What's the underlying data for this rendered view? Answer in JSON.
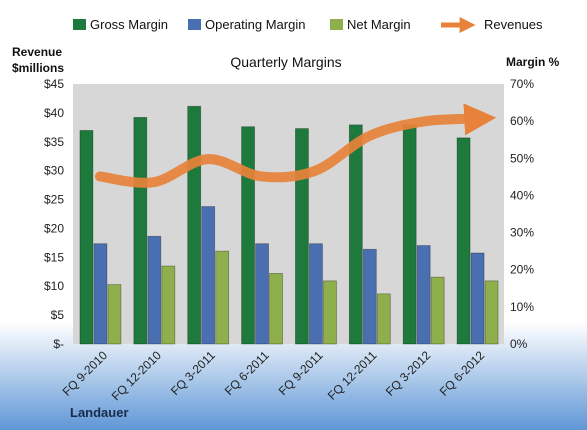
{
  "colors": {
    "gross": "#1e7a3c",
    "operating": "#4a6fb0",
    "net": "#8fae4c",
    "revenues": "#e8823a",
    "plot_bg": "#d7d7d7",
    "bg_top": "#ffffff",
    "bg_bottom": "#5f97d6"
  },
  "company": "Landauer",
  "chart_data": {
    "type": "bar",
    "title": "Quarterly Margins",
    "ylabel_left": [
      "Revenue",
      "$millions"
    ],
    "ylabel_right": "Margin %",
    "legend": [
      "Gross Margin",
      "Operating Margin",
      "Net Margin",
      "Revenues"
    ],
    "legend_position": "top",
    "grid": false,
    "categories": [
      "FQ 9-2010",
      "FQ 12-2010",
      "FQ 3-2011",
      "FQ 6-2011",
      "FQ 9-2011",
      "FQ 12-2011",
      "FQ 3-2012",
      "FQ 6-2012"
    ],
    "left_axis": {
      "ylim": [
        0,
        45
      ],
      "ticks": [
        "$-",
        "$5",
        "$10",
        "$15",
        "$20",
        "$25",
        "$30",
        "$35",
        "$40",
        "$45"
      ]
    },
    "right_axis": {
      "ylim": [
        0,
        70
      ],
      "ticks": [
        "0%",
        "10%",
        "20%",
        "30%",
        "40%",
        "50%",
        "60%",
        "70%"
      ]
    },
    "series": [
      {
        "name": "Gross Margin",
        "axis": "right",
        "values": [
          57.5,
          61.0,
          64.0,
          58.5,
          58.0,
          59.0,
          59.0,
          55.5
        ]
      },
      {
        "name": "Operating Margin",
        "axis": "right",
        "values": [
          27.0,
          29.0,
          37.0,
          27.0,
          27.0,
          25.5,
          26.5,
          24.5
        ]
      },
      {
        "name": "Net Margin",
        "axis": "right",
        "values": [
          16.0,
          21.0,
          25.0,
          19.0,
          17.0,
          13.5,
          18.0,
          17.0
        ]
      },
      {
        "name": "Revenues",
        "axis": "left",
        "type": "line",
        "values": [
          29.0,
          28.0,
          32.0,
          29.0,
          30.0,
          36.0,
          38.5,
          39.0
        ]
      }
    ]
  }
}
